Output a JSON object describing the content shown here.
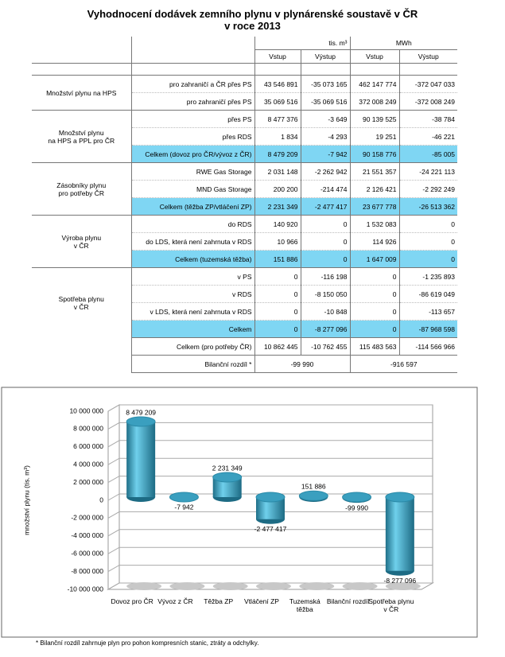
{
  "header": {
    "title": "Vyhodnocení dodávek zemního plynu v plynárenské soustavě v ČR",
    "subtitle": "v roce 2013"
  },
  "table": {
    "units": [
      "tis. m³",
      "MWh"
    ],
    "columns": [
      "Vstup",
      "Výstup",
      "Vstup",
      "Výstup"
    ],
    "groups": [
      {
        "label": "Množství plynu na HPS",
        "rows": [
          {
            "label": "pro zahraničí a ČR přes PS",
            "cells": [
              "43 546 891",
              "-35 073 165",
              "462 147 774",
              "-372 047 033"
            ]
          },
          {
            "label": "pro zahraničí přes PS",
            "cells": [
              "35 069 516",
              "-35 069 516",
              "372 008 249",
              "-372 008 249"
            ]
          }
        ]
      },
      {
        "label": "Množství plynu\nna HPS a PPL pro ČR",
        "rows": [
          {
            "label": "přes PS",
            "cells": [
              "8 477 376",
              "-3 649",
              "90 139 525",
              "-38 784"
            ]
          },
          {
            "label": "přes RDS",
            "cells": [
              "1 834",
              "-4 293",
              "19 251",
              "-46 221"
            ]
          },
          {
            "label": "Celkem (dovoz pro ČR/vývoz z ČR)",
            "cells": [
              "8 479 209",
              "-7 942",
              "90 158 776",
              "-85 005"
            ],
            "highlight": true
          }
        ]
      },
      {
        "label": "Zásobníky plynu\npro potřeby ČR",
        "rows": [
          {
            "label": "RWE Gas Storage",
            "cells": [
              "2 031 148",
              "-2 262 942",
              "21 551 357",
              "-24 221 113"
            ]
          },
          {
            "label": "MND Gas Storage",
            "cells": [
              "200 200",
              "-214 474",
              "2 126 421",
              "-2 292 249"
            ]
          },
          {
            "label": "Celkem (těžba ZP/vtláčení ZP)",
            "cells": [
              "2 231 349",
              "-2 477 417",
              "23 677 778",
              "-26 513 362"
            ],
            "highlight": true
          }
        ]
      },
      {
        "label": "Výroba plynu\nv ČR",
        "rows": [
          {
            "label": "do RDS",
            "cells": [
              "140 920",
              "0",
              "1 532 083",
              "0"
            ]
          },
          {
            "label": "do LDS, která není zahrnuta v RDS",
            "cells": [
              "10 966",
              "0",
              "114 926",
              "0"
            ]
          },
          {
            "label": "Celkem (tuzemská těžba)",
            "cells": [
              "151 886",
              "0",
              "1 647 009",
              "0"
            ],
            "highlight": true
          }
        ]
      },
      {
        "label": "Spotřeba plynu\nv ČR",
        "rows": [
          {
            "label": "v PS",
            "cells": [
              "0",
              "-116 198",
              "0",
              "-1 235 893"
            ]
          },
          {
            "label": "v RDS",
            "cells": [
              "0",
              "-8 150 050",
              "0",
              "-86 619 049"
            ]
          },
          {
            "label": "v LDS, která není zahrnuta v RDS",
            "cells": [
              "0",
              "-10 848",
              "0",
              "-113 657"
            ]
          },
          {
            "label": "Celkem",
            "cells": [
              "0",
              "-8 277 096",
              "0",
              "-87 968 598"
            ],
            "highlight": true
          }
        ]
      }
    ],
    "totals": [
      {
        "label": "Celkem (pro potřeby ČR)",
        "cells": [
          "10 862 445",
          "-10 762 455",
          "115 483 563",
          "-114 566 966"
        ]
      },
      {
        "label": "Bilanční rozdíl *",
        "cells": [
          "-99 990",
          "-916 597"
        ]
      }
    ]
  },
  "chart_data": {
    "type": "bar",
    "categories": [
      "Dovoz pro ČR",
      "Vývoz z ČR",
      "Těžba ZP",
      "Vtláčení ZP",
      "Tuzemská těžba",
      "Bilanční rozdíl",
      "Spotřeba plynu v ČR"
    ],
    "values": [
      8479209,
      -7942,
      2231349,
      -2477417,
      151886,
      -99990,
      -8277096
    ],
    "value_labels": [
      "8 479 209",
      "-7 942",
      "2 231 349",
      "-2 477 417",
      "151 886",
      "-99 990",
      "-8 277 096"
    ],
    "color": "#3a9fbf",
    "y_label": "množství plynu (tis. m³)",
    "ylim": [
      -10000000,
      10000000
    ],
    "yticks": [
      {
        "value": -10000000,
        "label": "-10 000 000"
      },
      {
        "value": -8000000,
        "label": "-8 000 000"
      },
      {
        "value": -6000000,
        "label": "-6 000 000"
      },
      {
        "value": -4000000,
        "label": "-4 000 000"
      },
      {
        "value": -2000000,
        "label": "-2 000 000"
      },
      0,
      {
        "value": 2000000,
        "label": "2 000 000"
      },
      {
        "value": 4000000,
        "label": "4 000 000"
      },
      {
        "value": 6000000,
        "label": "6 000 000"
      },
      {
        "value": 8000000,
        "label": "8 000 000"
      },
      {
        "value": 10000000,
        "label": "10 000 000"
      }
    ],
    "grid": true
  },
  "footnote": "* Bilanční rozdíl zahrnuje plyn pro pohon kompresních stanic, ztráty a odchylky."
}
